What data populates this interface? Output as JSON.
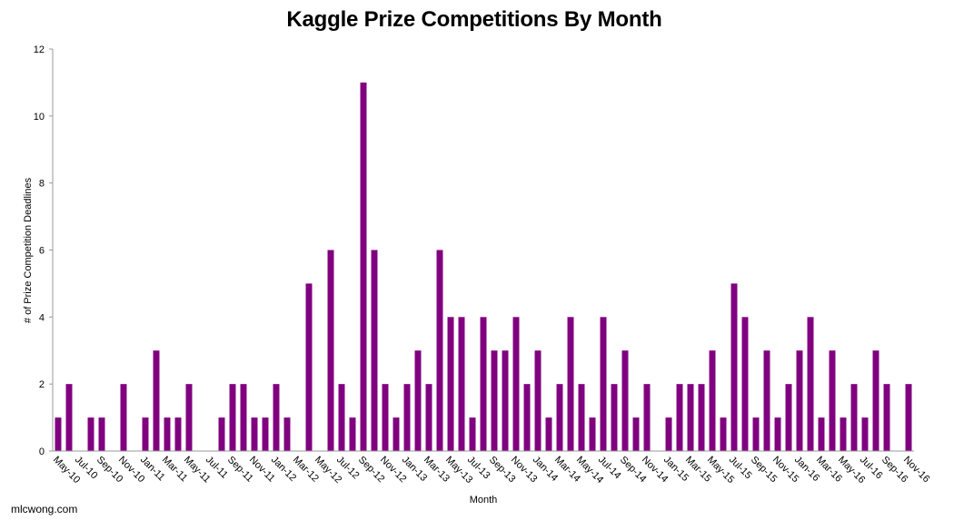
{
  "chart_data": {
    "type": "bar",
    "title": "Kaggle Prize Competitions By Month",
    "xlabel": "Month",
    "ylabel": "# of Prize Competition Deadlines",
    "ylim": [
      0,
      12
    ],
    "yticks": [
      0,
      2,
      4,
      6,
      8,
      10,
      12
    ],
    "grid": false,
    "bar_color": "#800080",
    "categories": [
      "May-10",
      "Jun-10",
      "Jul-10",
      "Aug-10",
      "Sep-10",
      "Oct-10",
      "Nov-10",
      "Dec-10",
      "Jan-11",
      "Feb-11",
      "Mar-11",
      "Apr-11",
      "May-11",
      "Jun-11",
      "Jul-11",
      "Aug-11",
      "Sep-11",
      "Oct-11",
      "Nov-11",
      "Dec-11",
      "Jan-12",
      "Feb-12",
      "Mar-12",
      "Apr-12",
      "May-12",
      "Jun-12",
      "Jul-12",
      "Aug-12",
      "Sep-12",
      "Oct-12",
      "Nov-12",
      "Dec-12",
      "Jan-13",
      "Feb-13",
      "Mar-13",
      "Apr-13",
      "May-13",
      "Jun-13",
      "Jul-13",
      "Aug-13",
      "Sep-13",
      "Oct-13",
      "Nov-13",
      "Dec-13",
      "Jan-14",
      "Feb-14",
      "Mar-14",
      "Apr-14",
      "May-14",
      "Jun-14",
      "Jul-14",
      "Aug-14",
      "Sep-14",
      "Oct-14",
      "Nov-14",
      "Dec-14",
      "Jan-15",
      "Feb-15",
      "Mar-15",
      "Apr-15",
      "May-15",
      "Jun-15",
      "Jul-15",
      "Aug-15",
      "Sep-15",
      "Oct-15",
      "Nov-15",
      "Dec-15",
      "Jan-16",
      "Feb-16",
      "Mar-16",
      "Apr-16",
      "May-16",
      "Jun-16",
      "Jul-16",
      "Aug-16",
      "Sep-16",
      "Oct-16",
      "Nov-16"
    ],
    "tick_labels": [
      "May-10",
      "Jul-10",
      "Sep-10",
      "Nov-10",
      "Jan-11",
      "Mar-11",
      "May-11",
      "Jul-11",
      "Sep-11",
      "Nov-11",
      "Jan-12",
      "Mar-12",
      "May-12",
      "Jul-12",
      "Sep-12",
      "Nov-12",
      "Jan-13",
      "Mar-13",
      "May-13",
      "Jul-13",
      "Sep-13",
      "Nov-13",
      "Jan-14",
      "Mar-14",
      "May-14",
      "Jul-14",
      "Sep-14",
      "Nov-14",
      "Jan-15",
      "Mar-15",
      "May-15",
      "Jul-15",
      "Sep-15",
      "Nov-15",
      "Jan-16",
      "Mar-16",
      "May-16",
      "Jul-16",
      "Sep-16",
      "Nov-16"
    ],
    "values": [
      1,
      2,
      0,
      1,
      1,
      0,
      2,
      0,
      1,
      3,
      1,
      1,
      2,
      0,
      0,
      1,
      2,
      2,
      1,
      1,
      2,
      1,
      0,
      5,
      0,
      6,
      2,
      1,
      11,
      6,
      2,
      1,
      2,
      3,
      2,
      6,
      4,
      4,
      1,
      4,
      3,
      3,
      4,
      2,
      3,
      1,
      2,
      4,
      2,
      1,
      4,
      2,
      3,
      1,
      2,
      0,
      1,
      2,
      2,
      2,
      3,
      1,
      5,
      4,
      1,
      3,
      1,
      2,
      3,
      4,
      1,
      3,
      1,
      2,
      1,
      3,
      2,
      0,
      2
    ]
  },
  "footer": {
    "credit": "mlcwong.com"
  }
}
